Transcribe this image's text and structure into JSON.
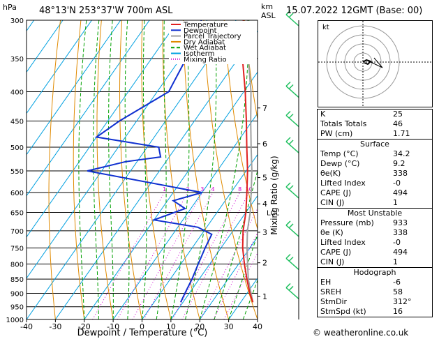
{
  "header": {
    "location": "48°13'N  253°37'W  700m  ASL",
    "datetime": "15.07.2022  12GMT  (Base: 00)",
    "hpa_label": "hPa",
    "km_label": "km",
    "asl_label": "ASL"
  },
  "legend": [
    "Temperature",
    "Dewpoint",
    "Parcel Trajectory",
    "Dry Adiabat",
    "Wet Adiabat",
    "Isotherm",
    "Mixing Ratio"
  ],
  "colors": {
    "temperature": "#e02020",
    "dewpoint": "#1030d0",
    "parcel": "#a0a0a0",
    "dry_adiabat": "#e08a00",
    "wet_adiabat": "#00a000",
    "isotherm": "#00a0e0",
    "mixing_ratio": "#d000d0",
    "wind": "#20c060"
  },
  "chart_data": {
    "type": "skew-t",
    "xlabel": "Dewpoint / Temperature (°C)",
    "ylabel_right": "Mixing Ratio (g/kg)",
    "x_ticks": [
      -40,
      -30,
      -20,
      -10,
      0,
      10,
      20,
      30,
      40
    ],
    "pressure_levels": [
      300,
      350,
      400,
      450,
      500,
      550,
      600,
      650,
      700,
      750,
      800,
      850,
      900,
      950,
      1000
    ],
    "p_range": [
      300,
      1000
    ],
    "t_range": [
      -40,
      40
    ],
    "km_ticks": [
      {
        "km": 1,
        "p": 912
      },
      {
        "km": 2,
        "p": 796
      },
      {
        "km": 3,
        "p": 704
      },
      {
        "km": 4,
        "p": 628
      },
      {
        "km": 5,
        "p": 565
      },
      {
        "km": 6,
        "p": 493
      },
      {
        "km": 7,
        "p": 427
      }
    ],
    "lcl": {
      "label": "LCL",
      "p": 650
    },
    "mixing_ratio_labels": [
      {
        "label": "1",
        "w": 1
      },
      {
        "label": "2",
        "w": 2
      },
      {
        "label": "3",
        "w": 3
      },
      {
        "label": "4",
        "w": 4
      },
      {
        "label": "8",
        "w": 8
      },
      {
        "label": "10",
        "w": 10
      },
      {
        "label": "15",
        "w": 15
      },
      {
        "label": "20",
        "w": 20
      },
      {
        "label": "25",
        "w": 25
      }
    ],
    "temperature": [
      [
        933,
        34.2
      ],
      [
        900,
        31.0
      ],
      [
        850,
        26.5
      ],
      [
        800,
        22.0
      ],
      [
        750,
        17.5
      ],
      [
        700,
        13.5
      ],
      [
        650,
        10.0
      ],
      [
        600,
        5.5
      ],
      [
        550,
        0.5
      ],
      [
        500,
        -5.5
      ],
      [
        450,
        -12.0
      ],
      [
        400,
        -19.5
      ],
      [
        350,
        -28.5
      ],
      [
        300,
        -37.5
      ]
    ],
    "dewpoint": [
      [
        933,
        9.2
      ],
      [
        900,
        8.5
      ],
      [
        850,
        7.5
      ],
      [
        800,
        6.0
      ],
      [
        750,
        4.5
      ],
      [
        710,
        3.5
      ],
      [
        690,
        -3.0
      ],
      [
        670,
        -20.0
      ],
      [
        640,
        -12.0
      ],
      [
        620,
        -18.0
      ],
      [
        600,
        -10.0
      ],
      [
        550,
        -55.0
      ],
      [
        530,
        -44.0
      ],
      [
        520,
        -33.0
      ],
      [
        500,
        -36.0
      ],
      [
        480,
        -60.0
      ],
      [
        450,
        -56.0
      ],
      [
        400,
        -46.0
      ],
      [
        350,
        -48.0
      ],
      [
        300,
        -52.0
      ]
    ],
    "parcel": [
      [
        933,
        34.2
      ],
      [
        850,
        27.0
      ],
      [
        750,
        19.0
      ],
      [
        700,
        15.0
      ],
      [
        650,
        11.5
      ],
      [
        600,
        7.0
      ],
      [
        550,
        2.0
      ],
      [
        500,
        -4.0
      ],
      [
        450,
        -10.5
      ],
      [
        400,
        -17.5
      ],
      [
        350,
        -26.5
      ],
      [
        300,
        -36.0
      ]
    ],
    "wind_barbs_p": [
      300,
      400,
      450,
      500,
      600,
      700,
      800,
      900
    ]
  },
  "indices": {
    "k": {
      "label": "K",
      "value": "25"
    },
    "totals": {
      "label": "Totals Totals",
      "value": "46"
    },
    "pw": {
      "label": "PW (cm)",
      "value": "1.71"
    }
  },
  "surface": {
    "title": "Surface",
    "rows": [
      {
        "label": "Temp (°C)",
        "value": "34.2"
      },
      {
        "label": "Dewp (°C)",
        "value": "9.2"
      },
      {
        "label": "θe(K)",
        "value": "338"
      },
      {
        "label": "Lifted Index",
        "value": "-0"
      },
      {
        "label": "CAPE (J)",
        "value": "494"
      },
      {
        "label": "CIN (J)",
        "value": "1"
      }
    ]
  },
  "most_unstable": {
    "title": "Most Unstable",
    "rows": [
      {
        "label": "Pressure (mb)",
        "value": "933"
      },
      {
        "label": "θe (K)",
        "value": "338"
      },
      {
        "label": "Lifted Index",
        "value": "-0"
      },
      {
        "label": "CAPE (J)",
        "value": "494"
      },
      {
        "label": "CIN (J)",
        "value": "1"
      }
    ]
  },
  "hodograph": {
    "title": "Hodograph",
    "label": "kt",
    "rows": [
      {
        "label": "EH",
        "value": "-6"
      },
      {
        "label": "SREH",
        "value": "58"
      },
      {
        "label": "StmDir",
        "value": "312°"
      },
      {
        "label": "StmSpd (kt)",
        "value": "16"
      }
    ]
  },
  "credit": "© weatheronline.co.uk"
}
